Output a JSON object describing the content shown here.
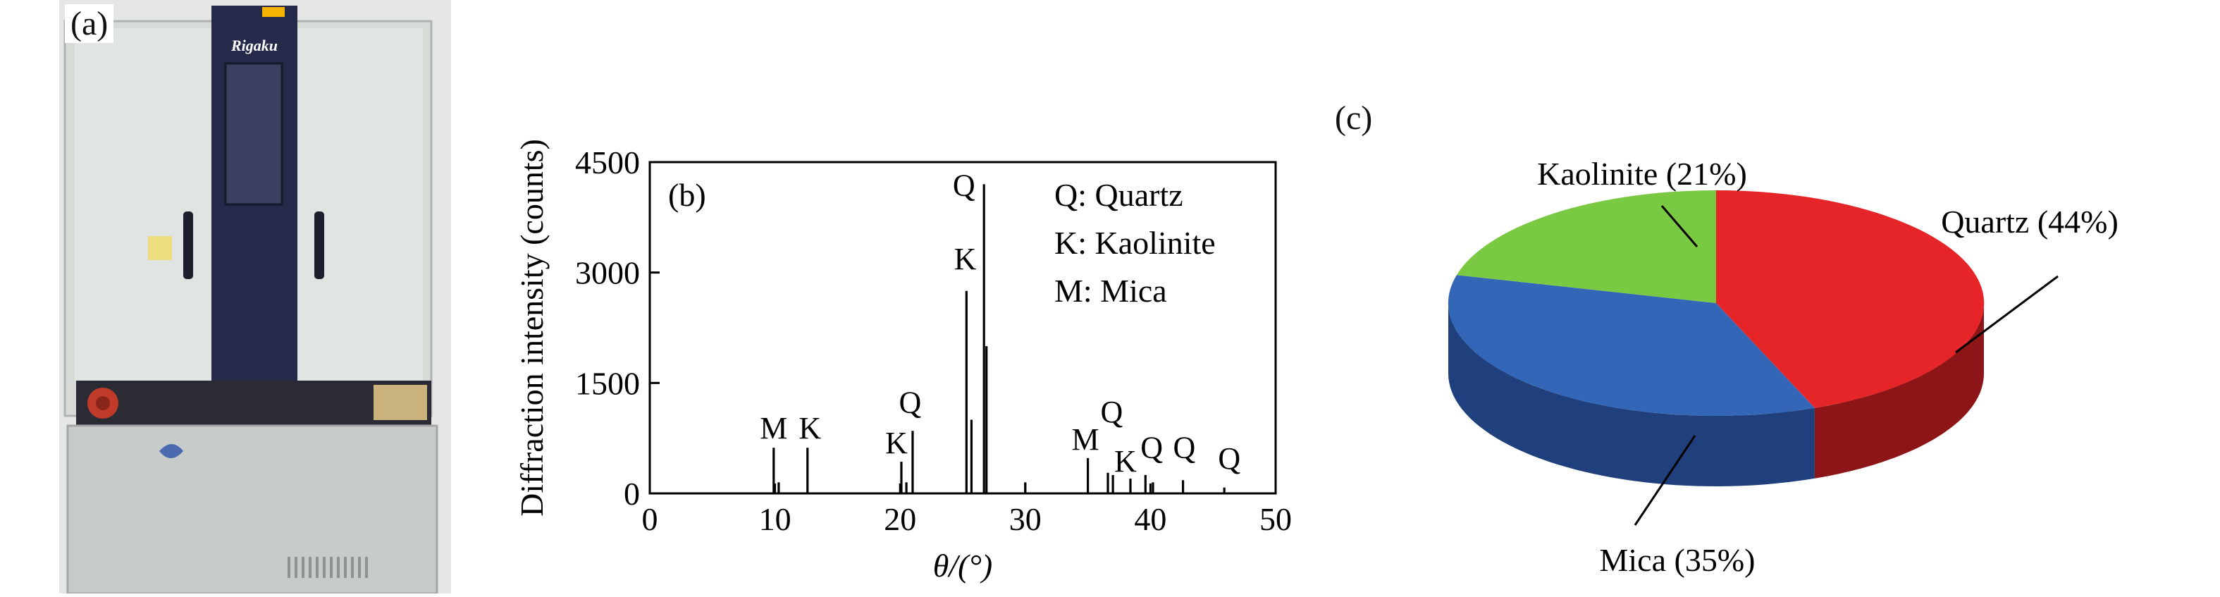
{
  "panel_a": {
    "label": "(a)",
    "instrument_brand": "Rigaku",
    "colors": {
      "body": "#dadfdc",
      "column": "#252a4a",
      "front": "#c7cbca"
    }
  },
  "panel_b": {
    "label": "(b)",
    "legend": [
      "Q: Quartz",
      "K: Kaolinite",
      "M: Mica"
    ]
  },
  "panel_c": {
    "label": "(c)"
  },
  "chart_data": [
    {
      "type": "line",
      "title": "",
      "xlabel": "θ/(°)",
      "ylabel": "Diffraction intensity (counts)",
      "xlim": [
        0,
        50
      ],
      "ylim": [
        0,
        4500
      ],
      "xticks": [
        0,
        10,
        20,
        30,
        40,
        50
      ],
      "yticks": [
        0,
        1500,
        3000,
        4500
      ],
      "grid": false,
      "legend_position": "top-right",
      "series": [
        {
          "peaks": [
            {
              "x": 9.9,
              "y": 620
            },
            {
              "x": 10.3,
              "y": 150
            },
            {
              "x": 12.6,
              "y": 620
            },
            {
              "x": 20.1,
              "y": 430
            },
            {
              "x": 20.5,
              "y": 150
            },
            {
              "x": 21.0,
              "y": 850
            },
            {
              "x": 25.3,
              "y": 2750
            },
            {
              "x": 25.7,
              "y": 1000
            },
            {
              "x": 26.7,
              "y": 4200
            },
            {
              "x": 26.9,
              "y": 2000
            },
            {
              "x": 30.0,
              "y": 150
            },
            {
              "x": 35.0,
              "y": 480
            },
            {
              "x": 36.6,
              "y": 280
            },
            {
              "x": 37.0,
              "y": 250
            },
            {
              "x": 38.4,
              "y": 200
            },
            {
              "x": 39.6,
              "y": 250
            },
            {
              "x": 40.2,
              "y": 150
            },
            {
              "x": 42.6,
              "y": 180
            },
            {
              "x": 45.9,
              "y": 80
            }
          ]
        }
      ],
      "annotations": [
        {
          "text": "M",
          "x": 9.9,
          "y": 650
        },
        {
          "text": "K",
          "x": 12.8,
          "y": 650
        },
        {
          "text": "K",
          "x": 19.7,
          "y": 450
        },
        {
          "text": "Q",
          "x": 20.8,
          "y": 1000
        },
        {
          "text": "K",
          "x": 25.2,
          "y": 2950
        },
        {
          "text": "Q",
          "x": 25.1,
          "y": 3950
        },
        {
          "text": "M",
          "x": 34.8,
          "y": 500
        },
        {
          "text": "Q",
          "x": 36.9,
          "y": 870
        },
        {
          "text": "K",
          "x": 38.0,
          "y": 200
        },
        {
          "text": "Q",
          "x": 40.1,
          "y": 390
        },
        {
          "text": "Q",
          "x": 42.7,
          "y": 390
        },
        {
          "text": "Q",
          "x": 46.3,
          "y": 240
        }
      ]
    },
    {
      "type": "pie",
      "title": "",
      "labels": [
        "Quartz (44%)",
        "Mica (35%)",
        "Kaolinite (21%)"
      ],
      "values": [
        44,
        35,
        21
      ],
      "colors": [
        "#e52528",
        "#3466b8",
        "#7ac943"
      ],
      "side_colors": [
        "#8e1517",
        "#1f3f7d",
        "#4c8a26"
      ],
      "style": "3d"
    }
  ]
}
